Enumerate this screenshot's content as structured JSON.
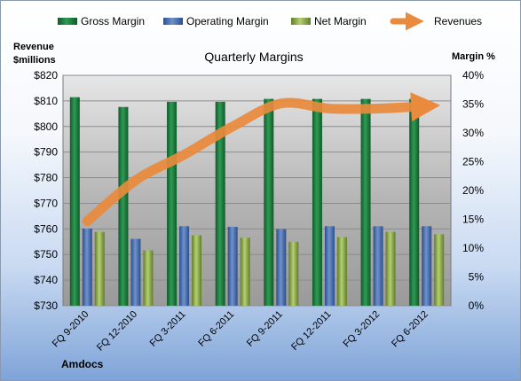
{
  "chart_data": {
    "type": "bar",
    "title": "Quarterly Margins",
    "left_axis_label_line1": "Revenue",
    "left_axis_label_line2": "$millions",
    "right_axis_label": "Margin %",
    "footer": "Amdocs",
    "categories": [
      "FQ 9-2010",
      "FQ 12-2010",
      "FQ 3-2011",
      "FQ 6-2011",
      "FQ 9-2011",
      "FQ 12-2011",
      "FQ 3-2012",
      "FQ 6-2012"
    ],
    "left_axis": {
      "min": 730,
      "max": 820,
      "step": 10,
      "tick_labels": [
        "$730",
        "$740",
        "$750",
        "$760",
        "$770",
        "$780",
        "$790",
        "$800",
        "$810",
        "$820"
      ]
    },
    "right_axis": {
      "min": 0,
      "max": 40,
      "step": 5,
      "tick_labels": [
        "0%",
        "5%",
        "10%",
        "15%",
        "20%",
        "25%",
        "30%",
        "35%",
        "40%"
      ]
    },
    "series": [
      {
        "name": "Gross Margin",
        "axis": "right",
        "type": "bar",
        "color": "#1a7a3c",
        "values": [
          36.2,
          34.5,
          35.4,
          35.4,
          35.9,
          35.9,
          35.9,
          35.9
        ]
      },
      {
        "name": "Operating Margin",
        "axis": "right",
        "type": "bar",
        "color": "#4a6fae",
        "values": [
          13.4,
          11.6,
          13.8,
          13.7,
          13.3,
          13.8,
          13.8,
          13.8
        ]
      },
      {
        "name": "Net Margin",
        "axis": "right",
        "type": "bar",
        "color": "#8fae4a",
        "values": [
          12.8,
          9.6,
          12.2,
          11.8,
          11.1,
          11.9,
          12.8,
          12.4
        ]
      },
      {
        "name": "Revenues",
        "axis": "left",
        "type": "line",
        "color": "#e98a3c",
        "values": [
          763,
          779,
          789,
          800,
          809,
          807,
          807,
          808
        ]
      }
    ],
    "legend_position": "top",
    "grid": true
  }
}
